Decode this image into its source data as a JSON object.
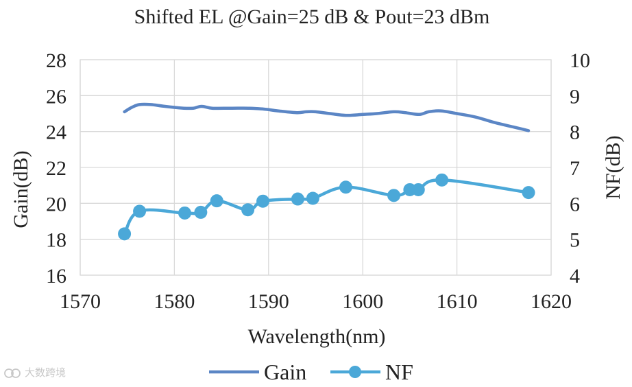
{
  "chart_data": {
    "type": "line",
    "title": "Shifted EL @Gain=25 dB & Pout=23 dBm",
    "xlabel": "Wavelength(nm)",
    "ylabel_left": "Gain(dB)",
    "ylabel_right": "NF(dB)",
    "xlim": [
      1570,
      1620
    ],
    "ylim_left": [
      16,
      28
    ],
    "ylim_right": [
      4,
      10
    ],
    "x_ticks": [
      "1570",
      "1580",
      "1590",
      "1600",
      "1610",
      "1620"
    ],
    "y_ticks_left": [
      "16",
      "18",
      "20",
      "22",
      "24",
      "26",
      "28"
    ],
    "y_ticks_right": [
      "4",
      "5",
      "6",
      "7",
      "8",
      "9",
      "10"
    ],
    "grid": true,
    "legend_position": "bottom",
    "series": [
      {
        "name": "Gain",
        "axis": "left",
        "color": "#5b86c5",
        "markers": false,
        "x": [
          1574.7,
          1575.5,
          1576.3,
          1577.5,
          1579.0,
          1581.0,
          1582.0,
          1582.9,
          1584.0,
          1586.0,
          1588.0,
          1589.5,
          1591.0,
          1593.0,
          1594.0,
          1595.0,
          1596.5,
          1598.2,
          1600.0,
          1601.5,
          1603.3,
          1604.5,
          1606.0,
          1607.0,
          1608.3,
          1610.0,
          1612.0,
          1614.0,
          1616.0,
          1617.6
        ],
        "y": [
          25.1,
          25.35,
          25.5,
          25.5,
          25.4,
          25.3,
          25.3,
          25.4,
          25.3,
          25.3,
          25.3,
          25.25,
          25.15,
          25.05,
          25.1,
          25.1,
          25.0,
          24.9,
          24.95,
          25.0,
          25.1,
          25.05,
          24.95,
          25.1,
          25.15,
          25.0,
          24.8,
          24.5,
          24.25,
          24.05
        ]
      },
      {
        "name": "NF",
        "axis": "right",
        "color": "#4ba8d8",
        "markers": true,
        "x": [
          1574.7,
          1576.3,
          1581.1,
          1582.8,
          1584.5,
          1587.8,
          1589.4,
          1593.1,
          1594.7,
          1598.2,
          1603.3,
          1605.0,
          1605.9,
          1608.4,
          1617.6
        ],
        "y": [
          5.15,
          5.78,
          5.73,
          5.75,
          6.07,
          5.82,
          6.06,
          6.12,
          6.14,
          6.45,
          6.22,
          6.38,
          6.38,
          6.65,
          6.3
        ]
      }
    ]
  },
  "watermark": "大数跨境"
}
